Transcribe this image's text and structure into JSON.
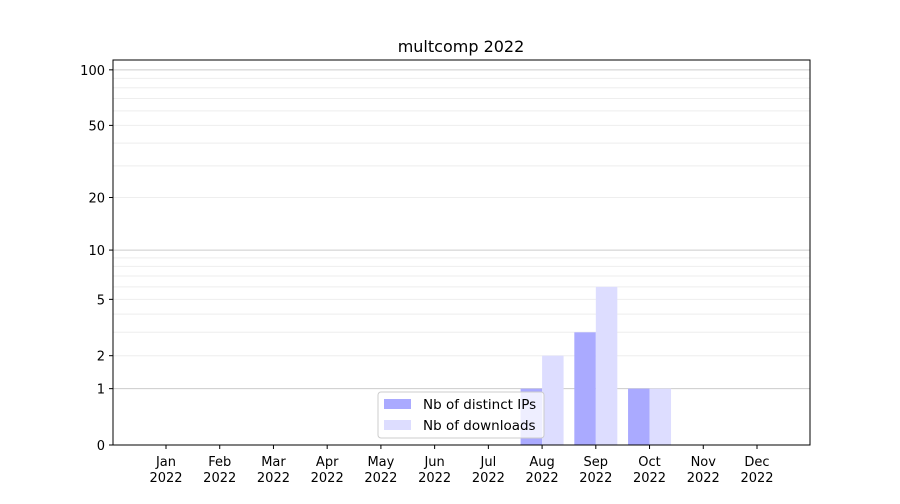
{
  "chart_data": {
    "type": "bar",
    "title": "multcomp 2022",
    "xlabel": "",
    "ylabel": "",
    "yscale": "log(1+y)",
    "ylim": [
      0,
      113
    ],
    "yticks": [
      0,
      1,
      2,
      5,
      10,
      20,
      50,
      100
    ],
    "grid": true,
    "legend_position": "lower-center",
    "categories": [
      "Jan\n2022",
      "Feb\n2022",
      "Mar\n2022",
      "Apr\n2022",
      "May\n2022",
      "Jun\n2022",
      "Jul\n2022",
      "Aug\n2022",
      "Sep\n2022",
      "Oct\n2022",
      "Nov\n2022",
      "Dec\n2022"
    ],
    "series": [
      {
        "name": "Nb of distinct IPs",
        "color": "#aaaaff",
        "values": [
          0,
          0,
          0,
          0,
          0,
          0,
          0,
          1,
          3,
          1,
          0,
          0
        ]
      },
      {
        "name": "Nb of downloads",
        "color": "#ddddff",
        "values": [
          0,
          0,
          0,
          0,
          0,
          0,
          0,
          2,
          6,
          1,
          0,
          0
        ]
      }
    ]
  }
}
